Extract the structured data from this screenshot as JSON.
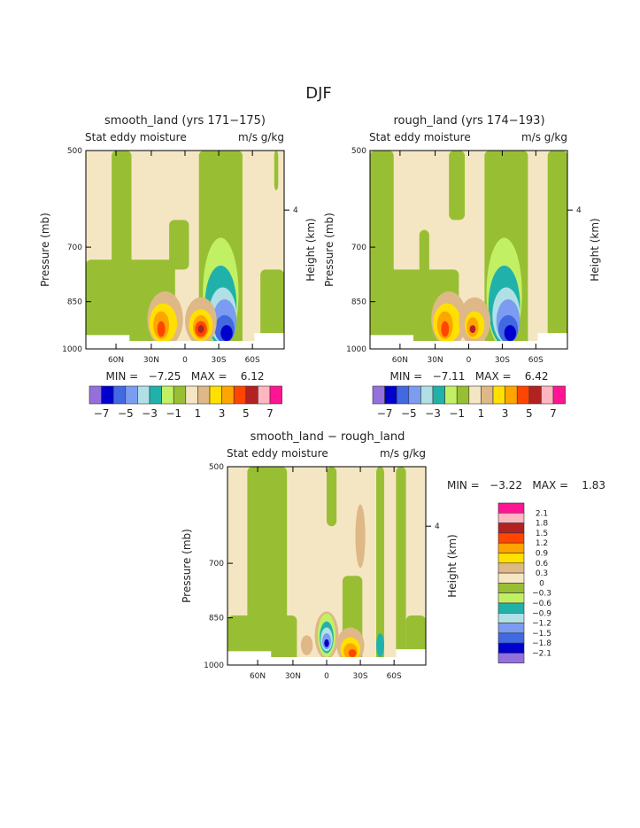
{
  "chart_data": {
    "type": "heatmap",
    "title": "DJF",
    "colors": [
      "#9370db",
      "#0000cd",
      "#4169e1",
      "#7b9cf0",
      "#b0e0e6",
      "#20b2aa",
      "#c2f065",
      "#98bf33",
      "#f5e6c3",
      "#deb887",
      "#ffe000",
      "#ffa500",
      "#ff4500",
      "#b22222",
      "#ffb6c1",
      "#ff1493"
    ],
    "panels": [
      {
        "title": "smooth_land (yrs 171−175)",
        "subtitle": "Stat eddy moisture",
        "units": "m/s g/kg",
        "ylabel": "Pressure (mb)",
        "y2label": "Height (km)",
        "y2ticks": [
          "4"
        ],
        "yticks": [
          "500",
          "700",
          "850",
          "1000"
        ],
        "xticks": [
          "60N",
          "30N",
          "0",
          "30S",
          "60S"
        ],
        "minmax": "MIN =   −7.25   MAX =    6.12",
        "min": -7.25,
        "max": 6.12,
        "colorbar_labels": [
          "−7",
          "−5",
          "−3",
          "−1",
          "1",
          "3",
          "5",
          "7"
        ]
      },
      {
        "title": "rough_land (yrs 174−193)",
        "subtitle": "Stat eddy moisture",
        "units": "m/s g/kg",
        "ylabel": "Pressure (mb)",
        "y2label": "Height (km)",
        "y2ticks": [
          "4"
        ],
        "yticks": [
          "500",
          "700",
          "850",
          "1000"
        ],
        "xticks": [
          "60N",
          "30N",
          "0",
          "30S",
          "60S"
        ],
        "minmax": "MIN =   −7.11   MAX =    6.42",
        "min": -7.11,
        "max": 6.42,
        "colorbar_labels": [
          "−7",
          "−5",
          "−3",
          "−1",
          "1",
          "3",
          "5",
          "7"
        ]
      },
      {
        "title": "smooth_land − rough_land",
        "subtitle": "Stat eddy moisture",
        "units": "m/s g/kg",
        "ylabel": "Pressure (mb)",
        "y2label": "Height (km)",
        "y2ticks": [
          "4"
        ],
        "yticks": [
          "500",
          "700",
          "850",
          "1000"
        ],
        "xticks": [
          "60N",
          "30N",
          "0",
          "30S",
          "60S"
        ],
        "minmax": "MIN =   −3.22   MAX =    1.83",
        "min": -3.22,
        "max": 1.83,
        "colorbar_labels": [
          "2.1",
          "1.8",
          "1.5",
          "1.2",
          "0.9",
          "0.6",
          "0.3",
          "0",
          "−0.3",
          "−0.6",
          "−0.9",
          "−1.2",
          "−1.5",
          "−1.8",
          "−2.1"
        ]
      }
    ]
  }
}
